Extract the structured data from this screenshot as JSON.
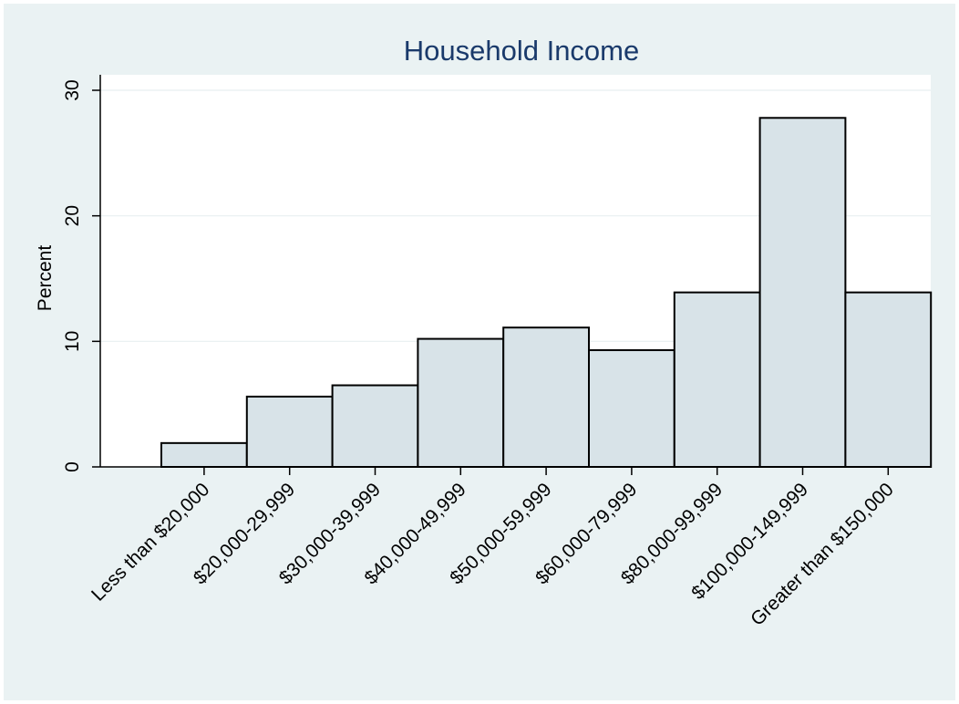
{
  "chart_data": {
    "type": "bar",
    "title": "Household Income",
    "xlabel": "",
    "ylabel": "Percent",
    "ylim": [
      0,
      30
    ],
    "yticks": [
      0,
      10,
      20,
      30
    ],
    "grid": true,
    "categories": [
      "Less than $20,000",
      "$20,000-29,999",
      "$30,000-39,999",
      "$40,000-49,999",
      "$50,000-59,999",
      "$60,000-79,999",
      "$80,000-99,999",
      "$100,000-149,999",
      "Greater than $150,000"
    ],
    "values": [
      1.9,
      5.6,
      6.5,
      10.2,
      11.1,
      9.3,
      13.9,
      27.8,
      13.9
    ],
    "colors": {
      "background": "#eaf2f3",
      "plot": "#ffffff",
      "bar_fill": "#d8e3e8",
      "bar_stroke": "#000000",
      "grid": "#e8eff1",
      "title": "#1a3a6b"
    }
  }
}
